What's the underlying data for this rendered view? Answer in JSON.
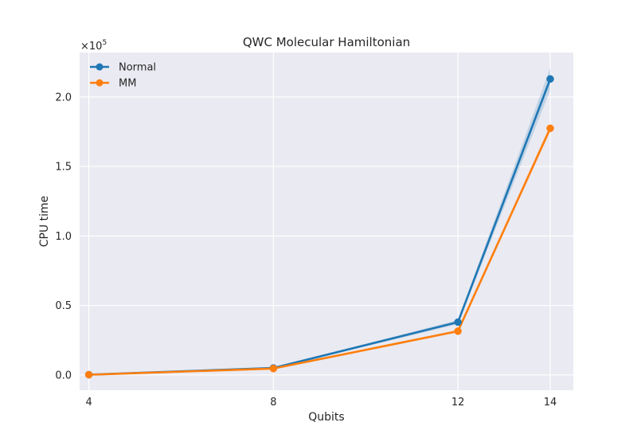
{
  "chart_data": {
    "type": "line",
    "title": "QWC Molecular Hamiltonian",
    "xlabel": "Qubits",
    "ylabel": "CPU time",
    "y_scale_label": "×10",
    "y_scale_exponent": "5",
    "x": [
      4,
      8,
      12,
      14
    ],
    "x_tick_labels": [
      "4",
      "8",
      "12",
      "14"
    ],
    "xlim": [
      3.8,
      14.5
    ],
    "ylim": [
      -11000,
      232000
    ],
    "y_ticks": [
      0,
      50000,
      100000,
      150000,
      200000
    ],
    "y_tick_labels": [
      "0.0",
      "0.5",
      "1.0",
      "1.5",
      "2.0"
    ],
    "grid": true,
    "legend_position": "top-left",
    "series": [
      {
        "name": "Normal",
        "color": "#1f77b4",
        "values": [
          200,
          5000,
          38000,
          213000
        ],
        "ci_lower": [
          150,
          4600,
          36500,
          205000
        ],
        "ci_upper": [
          250,
          5400,
          39500,
          221000
        ]
      },
      {
        "name": "MM",
        "color": "#ff7f0e",
        "values": [
          150,
          4600,
          31500,
          177500
        ],
        "ci_lower": [
          120,
          4300,
          30500,
          175000
        ],
        "ci_upper": [
          180,
          4900,
          32500,
          180000
        ]
      }
    ]
  }
}
